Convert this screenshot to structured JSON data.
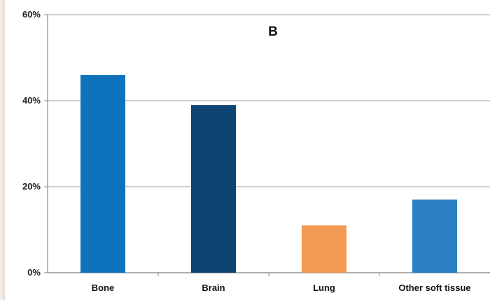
{
  "chart_data": {
    "type": "bar",
    "title": "B",
    "xlabel": "",
    "ylabel": "",
    "categories": [
      "Bone",
      "Brain",
      "Lung",
      "Other soft tissue"
    ],
    "values": [
      46,
      39,
      11,
      17
    ],
    "value_unit": "%",
    "ylim": [
      0,
      60
    ],
    "yticks": [
      0,
      20,
      40,
      60
    ],
    "ytick_labels": [
      "0%",
      "20%",
      "40%",
      "60%"
    ],
    "grid": true,
    "legend": "none",
    "bar_colors": [
      "#0f72bd",
      "#0d4474",
      "#f39a55",
      "#2b80c2"
    ]
  }
}
